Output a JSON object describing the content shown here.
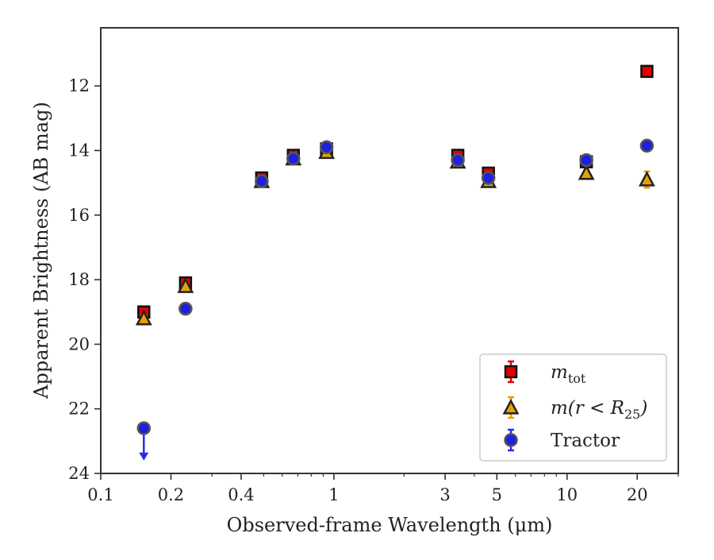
{
  "chart_data": {
    "type": "scatter",
    "title": "",
    "xlabel": "Observed-frame Wavelength (μm)",
    "ylabel": "Apparent Brightness (AB mag)",
    "xscale": "log",
    "xlim": [
      0.1,
      30
    ],
    "ylim": [
      24,
      10.2
    ],
    "y_inverted": true,
    "x_ticks": [
      0.1,
      0.2,
      0.4,
      1,
      3,
      5,
      10,
      20
    ],
    "x_tick_labels": [
      "0.1",
      "0.2",
      "0.4",
      "1",
      "3",
      "5",
      "10",
      "20"
    ],
    "y_ticks": [
      12,
      14,
      16,
      18,
      20,
      22,
      24
    ],
    "y_tick_labels": [
      "12",
      "14",
      "16",
      "18",
      "20",
      "22",
      "24"
    ],
    "grid": false,
    "legend_position": "lower-right",
    "series": [
      {
        "name": "m_tot",
        "legend": {
          "base": "m",
          "sub": "tot"
        },
        "marker": "square",
        "color": "#e00000",
        "errorbar_color": "#e00000",
        "points": [
          {
            "x": 0.153,
            "y": 19.0,
            "yerr": 0.1
          },
          {
            "x": 0.231,
            "y": 18.1,
            "yerr": 0.08
          },
          {
            "x": 0.49,
            "y": 14.85,
            "yerr": 0.05
          },
          {
            "x": 0.67,
            "y": 14.15,
            "yerr": 0.05
          },
          {
            "x": 0.93,
            "y": 13.95,
            "yerr": 0.05
          },
          {
            "x": 3.4,
            "y": 14.15,
            "yerr": 0.05
          },
          {
            "x": 4.6,
            "y": 14.7,
            "yerr": 0.05
          },
          {
            "x": 12.1,
            "y": 14.35,
            "yerr": 0.05
          },
          {
            "x": 22.0,
            "y": 11.55,
            "yerr": 0.05
          }
        ]
      },
      {
        "name": "m(r < R25)",
        "legend": {
          "base": "m(r < R",
          "sub": "25",
          "tail": ")"
        },
        "marker": "triangle",
        "color": "#e8a000",
        "errorbar_color": "#e8a000",
        "points": [
          {
            "x": 0.153,
            "y": 19.2,
            "yerr": 0.1
          },
          {
            "x": 0.231,
            "y": 18.2,
            "yerr": 0.08
          },
          {
            "x": 0.49,
            "y": 14.95,
            "yerr": 0.05
          },
          {
            "x": 0.67,
            "y": 14.25,
            "yerr": 0.05
          },
          {
            "x": 0.93,
            "y": 14.05,
            "yerr": 0.05
          },
          {
            "x": 3.4,
            "y": 14.35,
            "yerr": 0.05
          },
          {
            "x": 4.6,
            "y": 14.95,
            "yerr": 0.05
          },
          {
            "x": 12.1,
            "y": 14.7,
            "yerr": 0.08
          },
          {
            "x": 22.0,
            "y": 14.9,
            "yerr": 0.25
          }
        ]
      },
      {
        "name": "Tractor",
        "legend": {
          "base": "Tractor"
        },
        "marker": "circle",
        "color": "#1f1fe0",
        "errorbar_color": "#2a2af0",
        "points": [
          {
            "x": 0.153,
            "y": 22.6,
            "yerr": 0.05,
            "upper_limit": true
          },
          {
            "x": 0.231,
            "y": 18.9,
            "yerr": 0.05
          },
          {
            "x": 0.49,
            "y": 14.95,
            "yerr": 0.05
          },
          {
            "x": 0.67,
            "y": 14.25,
            "yerr": 0.05
          },
          {
            "x": 0.93,
            "y": 13.9,
            "yerr": 0.05
          },
          {
            "x": 3.4,
            "y": 14.3,
            "yerr": 0.05
          },
          {
            "x": 4.6,
            "y": 14.85,
            "yerr": 0.05
          },
          {
            "x": 12.1,
            "y": 14.3,
            "yerr": 0.05
          },
          {
            "x": 22.0,
            "y": 13.85,
            "yerr": 0.05
          }
        ]
      }
    ]
  }
}
